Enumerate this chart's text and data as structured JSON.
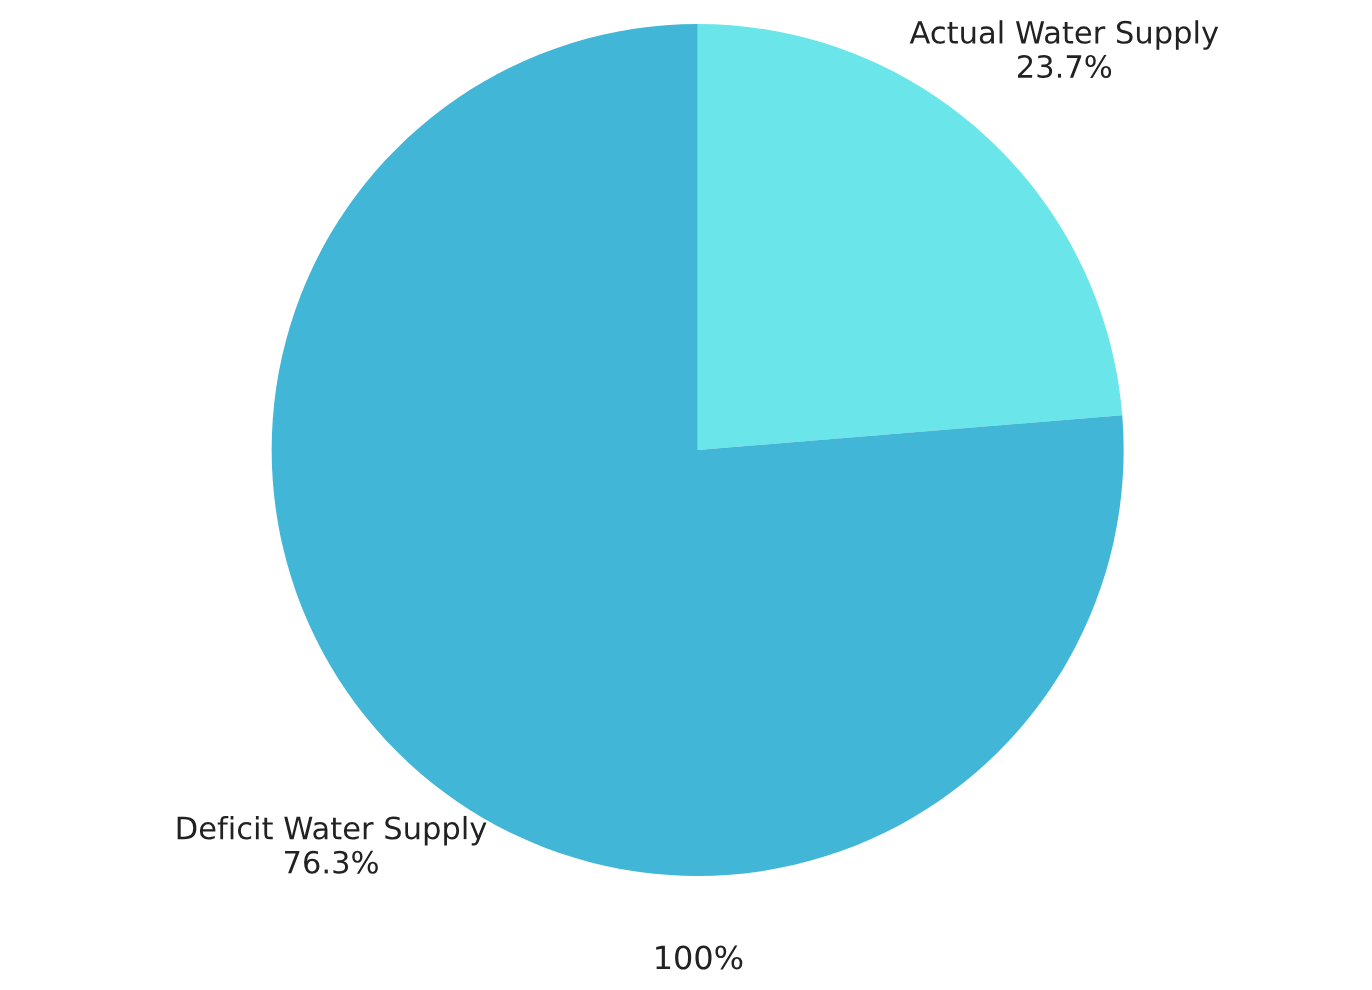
{
  "chart_data": {
    "type": "pie",
    "categories": [
      "Actual Water Supply",
      "Deficit Water Supply"
    ],
    "values": [
      23.7,
      76.3
    ],
    "colors": [
      "#6ae5e9",
      "#41b6d6"
    ],
    "value_labels": [
      "23.7%",
      "76.3%"
    ],
    "annotations": [
      "100%"
    ]
  }
}
